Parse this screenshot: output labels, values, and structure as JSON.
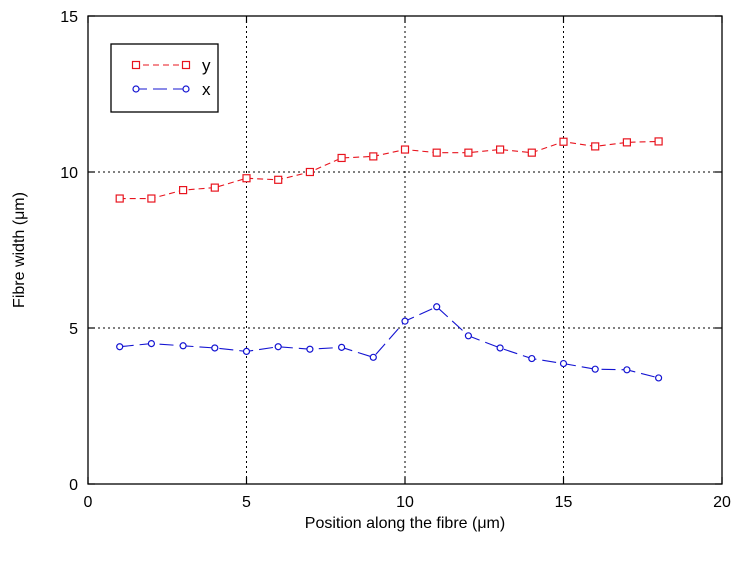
{
  "chart_data": {
    "type": "line",
    "title": "",
    "xlabel": "Position along the fibre (μm)",
    "ylabel": "Fibre width (μm)",
    "xlim": [
      0,
      20
    ],
    "ylim": [
      0,
      15
    ],
    "x_ticks": [
      "0",
      "5",
      "10",
      "15",
      "20"
    ],
    "y_ticks": [
      "0",
      "5",
      "10",
      "15"
    ],
    "grid": "dotted lines at x=5,10,15 and y=5,10",
    "legend_position": "top-left",
    "series": [
      {
        "name": "y",
        "color": "#e8141e",
        "marker": "square",
        "dash": "dashed",
        "x": [
          1,
          2,
          3,
          4,
          5,
          6,
          7,
          8,
          9,
          10,
          11,
          12,
          13,
          14,
          15,
          16,
          17,
          18
        ],
        "values": [
          9.15,
          9.15,
          9.42,
          9.5,
          9.8,
          9.75,
          10.0,
          10.45,
          10.5,
          10.72,
          10.62,
          10.62,
          10.72,
          10.62,
          10.97,
          10.82,
          10.95,
          10.98
        ]
      },
      {
        "name": "x",
        "color": "#1414d2",
        "marker": "circle",
        "dash": "long-dash",
        "x": [
          1,
          2,
          3,
          4,
          5,
          6,
          7,
          8,
          9,
          10,
          11,
          12,
          13,
          14,
          15,
          16,
          17,
          18
        ],
        "values": [
          4.4,
          4.5,
          4.43,
          4.36,
          4.25,
          4.4,
          4.32,
          4.38,
          4.06,
          5.22,
          5.68,
          4.75,
          4.36,
          4.02,
          3.86,
          3.68,
          3.66,
          3.4
        ]
      }
    ]
  }
}
